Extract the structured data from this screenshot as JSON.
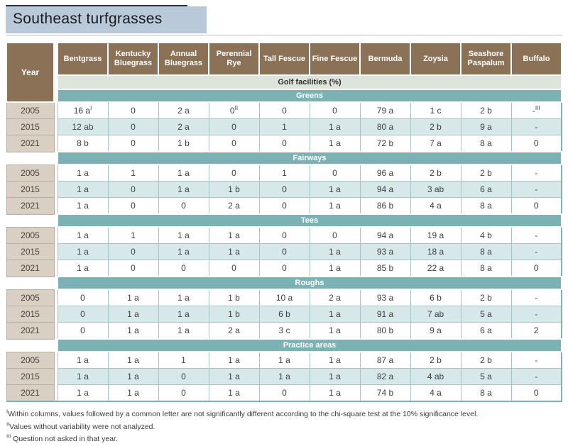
{
  "title": "Southeast turfgrasses",
  "colors": {
    "header_brown": "#8b7256",
    "section_teal": "#7cb2b4",
    "facilities_sage": "#dde4db",
    "year_tan": "#d9d0c3",
    "alt_row_blue": "#d6e8ea",
    "title_background": "#b9c9da",
    "title_top_rule": "#253750"
  },
  "table": {
    "year_header": "Year",
    "facilities_header": "Golf facilities (%)",
    "columns": [
      "Bentgrass",
      "Kentucky Bluegrass",
      "Annual Bluegrass",
      "Perennial Rye",
      "Tall Fescue",
      "Fine Fescue",
      "Bermuda",
      "Zoysia",
      "Seashore Paspalum",
      "Buffalo"
    ],
    "sections": [
      {
        "name": "Greens",
        "rows": [
          {
            "year": "2005",
            "values": [
              "16 a^I",
              "0",
              "2 a",
              "0^II",
              "0",
              "0",
              "79 a",
              "1 c",
              "2 b",
              "-^III"
            ]
          },
          {
            "year": "2015",
            "values": [
              "12 ab",
              "0",
              "2 a",
              "0",
              "1",
              "1 a",
              "80 a",
              "2 b",
              "9 a",
              "-"
            ]
          },
          {
            "year": "2021",
            "values": [
              "8 b",
              "0",
              "1 b",
              "0",
              "0",
              "1 a",
              "72 b",
              "7 a",
              "8 a",
              "0"
            ]
          }
        ]
      },
      {
        "name": "Fairways",
        "rows": [
          {
            "year": "2005",
            "values": [
              "1 a",
              "1",
              "1 a",
              "0",
              "1",
              "0",
              "96 a",
              "2 b",
              "2 b",
              "-"
            ]
          },
          {
            "year": "2015",
            "values": [
              "1 a",
              "0",
              "1 a",
              "1 b",
              "0",
              "1 a",
              "94 a",
              "3 ab",
              "6 a",
              "-"
            ]
          },
          {
            "year": "2021",
            "values": [
              "1 a",
              "0",
              "0",
              "2 a",
              "0",
              "1 a",
              "86 b",
              "4 a",
              "8 a",
              "0"
            ]
          }
        ]
      },
      {
        "name": "Tees",
        "rows": [
          {
            "year": "2005",
            "values": [
              "1 a",
              "1",
              "1 a",
              "1 a",
              "0",
              "0",
              "94 a",
              "19 a",
              "4 b",
              "-"
            ]
          },
          {
            "year": "2015",
            "values": [
              "1 a",
              "0",
              "1 a",
              "1 a",
              "0",
              "1 a",
              "93 a",
              "18 a",
              "8 a",
              "-"
            ]
          },
          {
            "year": "2021",
            "values": [
              "1 a",
              "0",
              "0",
              "0",
              "0",
              "1 a",
              "85 b",
              "22 a",
              "8 a",
              "0"
            ]
          }
        ]
      },
      {
        "name": "Roughs",
        "rows": [
          {
            "year": "2005",
            "values": [
              "0",
              "1 a",
              "1 a",
              "1 b",
              "10 a",
              "2 a",
              "93 a",
              "6 b",
              "2 b",
              "-"
            ]
          },
          {
            "year": "2015",
            "values": [
              "0",
              "1 a",
              "1 a",
              "1 b",
              "6 b",
              "1 a",
              "91 a",
              "7 ab",
              "5 a",
              "-"
            ]
          },
          {
            "year": "2021",
            "values": [
              "0",
              "1 a",
              "1 a",
              "2 a",
              "3 c",
              "1 a",
              "80 b",
              "9 a",
              "6 a",
              "2"
            ]
          }
        ]
      },
      {
        "name": "Practice areas",
        "rows": [
          {
            "year": "2005",
            "values": [
              "1 a",
              "1 a",
              "1",
              "1 a",
              "1 a",
              "1 a",
              "87 a",
              "2 b",
              "2 b",
              "-"
            ]
          },
          {
            "year": "2015",
            "values": [
              "1 a",
              "1 a",
              "0",
              "1 a",
              "1 a",
              "1 a",
              "82 a",
              "4 ab",
              "5 a",
              "-"
            ]
          },
          {
            "year": "2021",
            "values": [
              "1 a",
              "1 a",
              "0",
              "1 a",
              "0",
              "1 a",
              "74 b",
              "4 a",
              "8 a",
              "0"
            ]
          }
        ]
      }
    ]
  },
  "footnotes": [
    {
      "sup": "I",
      "text": "Within columns, values followed by a common letter are not significantly different according to the chi-square test at the 10% significance level."
    },
    {
      "sup": "II",
      "text": "Values without variability were not analyzed."
    },
    {
      "sup": "III",
      "text": " Question not asked in that year."
    }
  ]
}
